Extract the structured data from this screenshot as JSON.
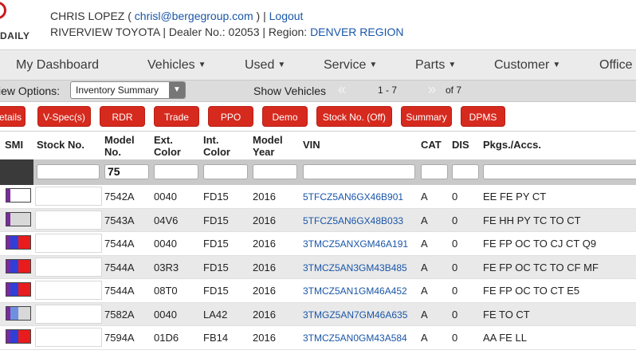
{
  "header": {
    "logo_text": "DAILY",
    "user_name": "CHRIS LOPEZ (",
    "user_email": "chrisl@bergegroup.com",
    "user_sep": ") |",
    "logout": "Logout",
    "dealer_prefix": "RIVERVIEW TOYOTA | Dealer No.: 02053 | Region:",
    "region": "DENVER REGION"
  },
  "nav": {
    "items": [
      {
        "label": "My Dashboard",
        "caret": ""
      },
      {
        "label": "Vehicles",
        "caret": "▼"
      },
      {
        "label": "Used",
        "caret": "▼"
      },
      {
        "label": "Service",
        "caret": "▼"
      },
      {
        "label": "Parts",
        "caret": "▼"
      },
      {
        "label": "Customer",
        "caret": "▼"
      },
      {
        "label": "Office",
        "caret": "▼"
      }
    ]
  },
  "options": {
    "label": "iew Options:",
    "select_value": "Inventory Summary",
    "show_vehicles": "Show Vehicles",
    "prev": "«",
    "range": "1 - 7",
    "next": "»",
    "total": "of 7"
  },
  "buttons": [
    "etails",
    "V-Spec(s)",
    "RDR",
    "Trade",
    "PPO",
    "Demo",
    "Stock No. (Off)",
    "Summary",
    "DPMS"
  ],
  "table": {
    "headers": {
      "smi": "SMI",
      "stock": "Stock No.",
      "model_1": "Model",
      "model_2": "No.",
      "ext_1": "Ext.",
      "ext_2": "Color",
      "int_1": "Int.",
      "int_2": "Color",
      "year_1": "Model",
      "year_2": "Year",
      "vin": "VIN",
      "cat": "CAT",
      "dis": "DIS",
      "pkgs": "Pkgs./Accs."
    },
    "filter_model": "75",
    "rows": [
      {
        "model": "7542A",
        "ext": "0040",
        "int": "FD15",
        "year": "2016",
        "vin": "5TFCZ5AN6GX46B901",
        "cat": "A",
        "dis": "0",
        "pkgs": "EE FE PY CT",
        "smi": [
          "#7a2a9c",
          "#ffffff",
          "#ffffff"
        ]
      },
      {
        "model": "7543A",
        "ext": "04V6",
        "int": "FD15",
        "year": "2016",
        "vin": "5TFCZ5AN6GX48B033",
        "cat": "A",
        "dis": "0",
        "pkgs": "FE HH PY TC TO CT",
        "smi": [
          "#7a2a9c",
          "#d8d8d8",
          "#d8d8d8"
        ]
      },
      {
        "model": "7544A",
        "ext": "0040",
        "int": "FD15",
        "year": "2016",
        "vin": "3TMCZ5ANXGM46A191",
        "cat": "A",
        "dis": "0",
        "pkgs": "FE FP OC TO CJ CT Q9",
        "smi": [
          "#7a2a9c",
          "#2f3fd8",
          "#e81c1c"
        ]
      },
      {
        "model": "7544A",
        "ext": "03R3",
        "int": "FD15",
        "year": "2016",
        "vin": "3TMCZ5AN3GM43B485",
        "cat": "A",
        "dis": "0",
        "pkgs": "FE FP OC TC TO CF MF",
        "smi": [
          "#7a2a9c",
          "#2f3fd8",
          "#e81c1c"
        ]
      },
      {
        "model": "7544A",
        "ext": "08T0",
        "int": "FD15",
        "year": "2016",
        "vin": "3TMCZ5AN1GM46A452",
        "cat": "A",
        "dis": "0",
        "pkgs": "FE FP OC TO CT E5",
        "smi": [
          "#7a2a9c",
          "#2f3fd8",
          "#e81c1c"
        ]
      },
      {
        "model": "7582A",
        "ext": "0040",
        "int": "LA42",
        "year": "2016",
        "vin": "3TMGZ5AN7GM46A635",
        "cat": "A",
        "dis": "0",
        "pkgs": "FE TO CT",
        "smi": [
          "#7a2a9c",
          "#6f8fe0",
          "#d8d8d8"
        ]
      },
      {
        "model": "7594A",
        "ext": "01D6",
        "int": "FB14",
        "year": "2016",
        "vin": "3TMCZ5AN0GM43A584",
        "cat": "A",
        "dis": "0",
        "pkgs": "AA FE LL",
        "smi": [
          "#7a2a9c",
          "#2f3fd8",
          "#e81c1c"
        ]
      }
    ]
  }
}
